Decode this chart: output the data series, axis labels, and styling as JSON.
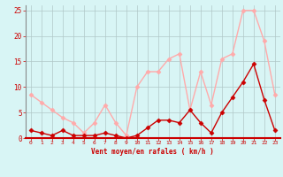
{
  "x": [
    0,
    1,
    2,
    3,
    4,
    5,
    6,
    7,
    8,
    9,
    10,
    11,
    12,
    13,
    14,
    15,
    16,
    17,
    18,
    19,
    20,
    21,
    22,
    23
  ],
  "rafales": [
    8.5,
    7.0,
    5.5,
    4.0,
    3.0,
    1.0,
    3.0,
    6.5,
    3.0,
    0.5,
    10.0,
    13.0,
    13.0,
    15.5,
    16.5,
    5.5,
    13.0,
    6.5,
    15.5,
    16.5,
    25.0,
    25.0,
    19.0,
    8.5
  ],
  "moyen": [
    1.5,
    1.0,
    0.5,
    1.5,
    0.5,
    0.5,
    0.5,
    1.0,
    0.5,
    0.0,
    0.5,
    2.0,
    3.5,
    3.5,
    3.0,
    5.5,
    3.0,
    1.0,
    5.0,
    8.0,
    11.0,
    14.5,
    7.5,
    1.5
  ],
  "rafales_color": "#ffaaaa",
  "moyen_color": "#cc0000",
  "bg_color": "#d8f5f5",
  "grid_color": "#b0c8c8",
  "axis_color": "#cc0000",
  "tick_color": "#cc0000",
  "xlabel": "Vent moyen/en rafales ( km/h )",
  "ylim": [
    0,
    26
  ],
  "yticks": [
    0,
    5,
    10,
    15,
    20,
    25
  ],
  "marker": "D",
  "markersize": 2.5,
  "linewidth": 1.0
}
